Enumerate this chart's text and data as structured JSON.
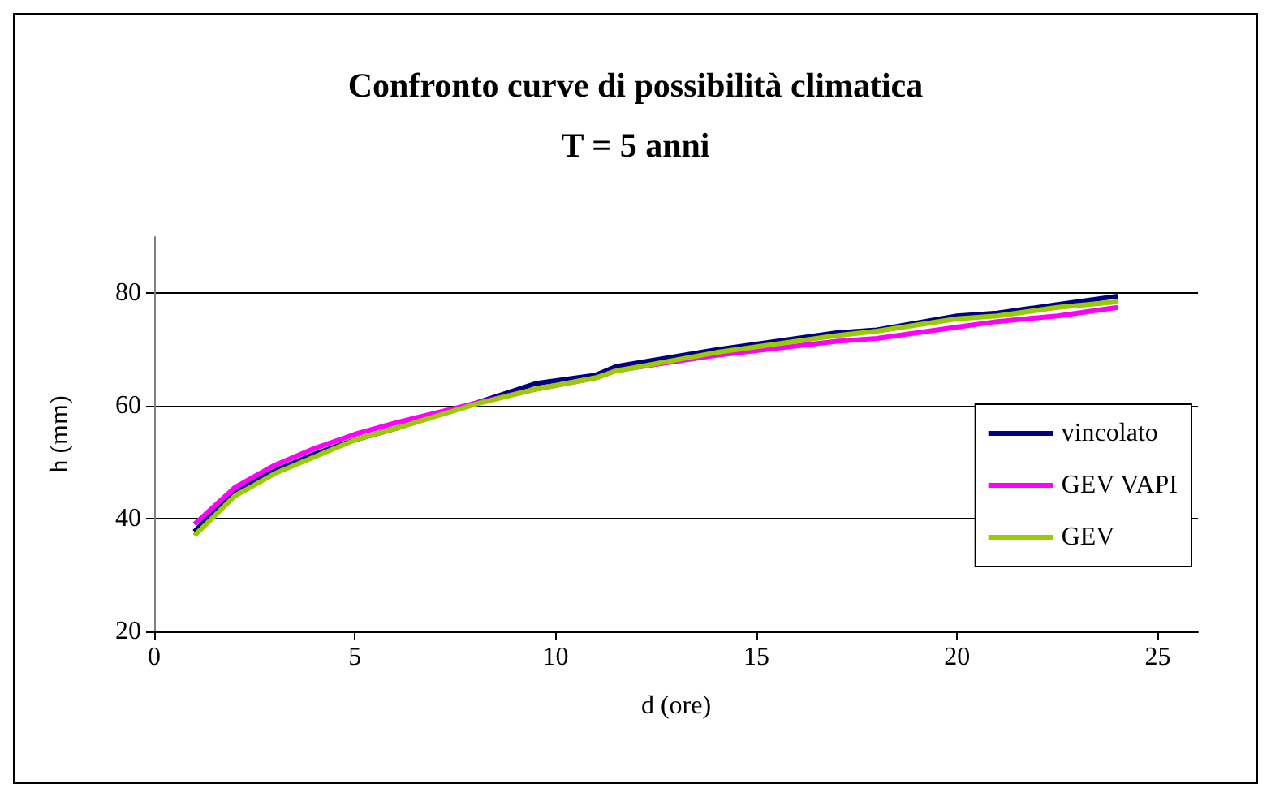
{
  "chart_data": {
    "type": "line",
    "title": "Confronto curve di possibilità climatica",
    "subtitle": "T = 5 anni",
    "xlabel": "d (ore)",
    "ylabel": "h (mm)",
    "x": [
      1,
      2,
      3,
      4,
      5,
      6,
      8,
      9.5,
      11,
      11.5,
      14,
      17,
      18,
      20,
      21,
      22.5,
      24
    ],
    "series": [
      {
        "name": "vincolato",
        "color": "#000080",
        "values": [
          37.7,
          45,
          48.5,
          51.5,
          54,
          56,
          60.5,
          64,
          65.5,
          67,
          70,
          73,
          73.5,
          76,
          76.5,
          78,
          79.5
        ]
      },
      {
        "name": "GEV VAPI",
        "color": "#ff00ff",
        "values": [
          39,
          45.5,
          49.5,
          52.5,
          55,
          57,
          60.5,
          63,
          65,
          66.3,
          69,
          71.5,
          72,
          74,
          75,
          76,
          77.5
        ]
      },
      {
        "name": "GEV",
        "color": "#99cc00",
        "values": [
          37,
          44,
          48,
          51,
          54,
          56,
          60.3,
          63,
          65,
          66.2,
          69.5,
          72.5,
          73.3,
          75.5,
          76,
          77.5,
          78.5
        ]
      }
    ],
    "xlim": [
      0,
      26
    ],
    "xticks": [
      0,
      5,
      10,
      15,
      20,
      25
    ],
    "ylim": [
      20,
      90
    ],
    "yticks": [
      20,
      40,
      60,
      80
    ],
    "grid": "y",
    "legend": "right",
    "marker": "none",
    "line_style": "solid"
  }
}
